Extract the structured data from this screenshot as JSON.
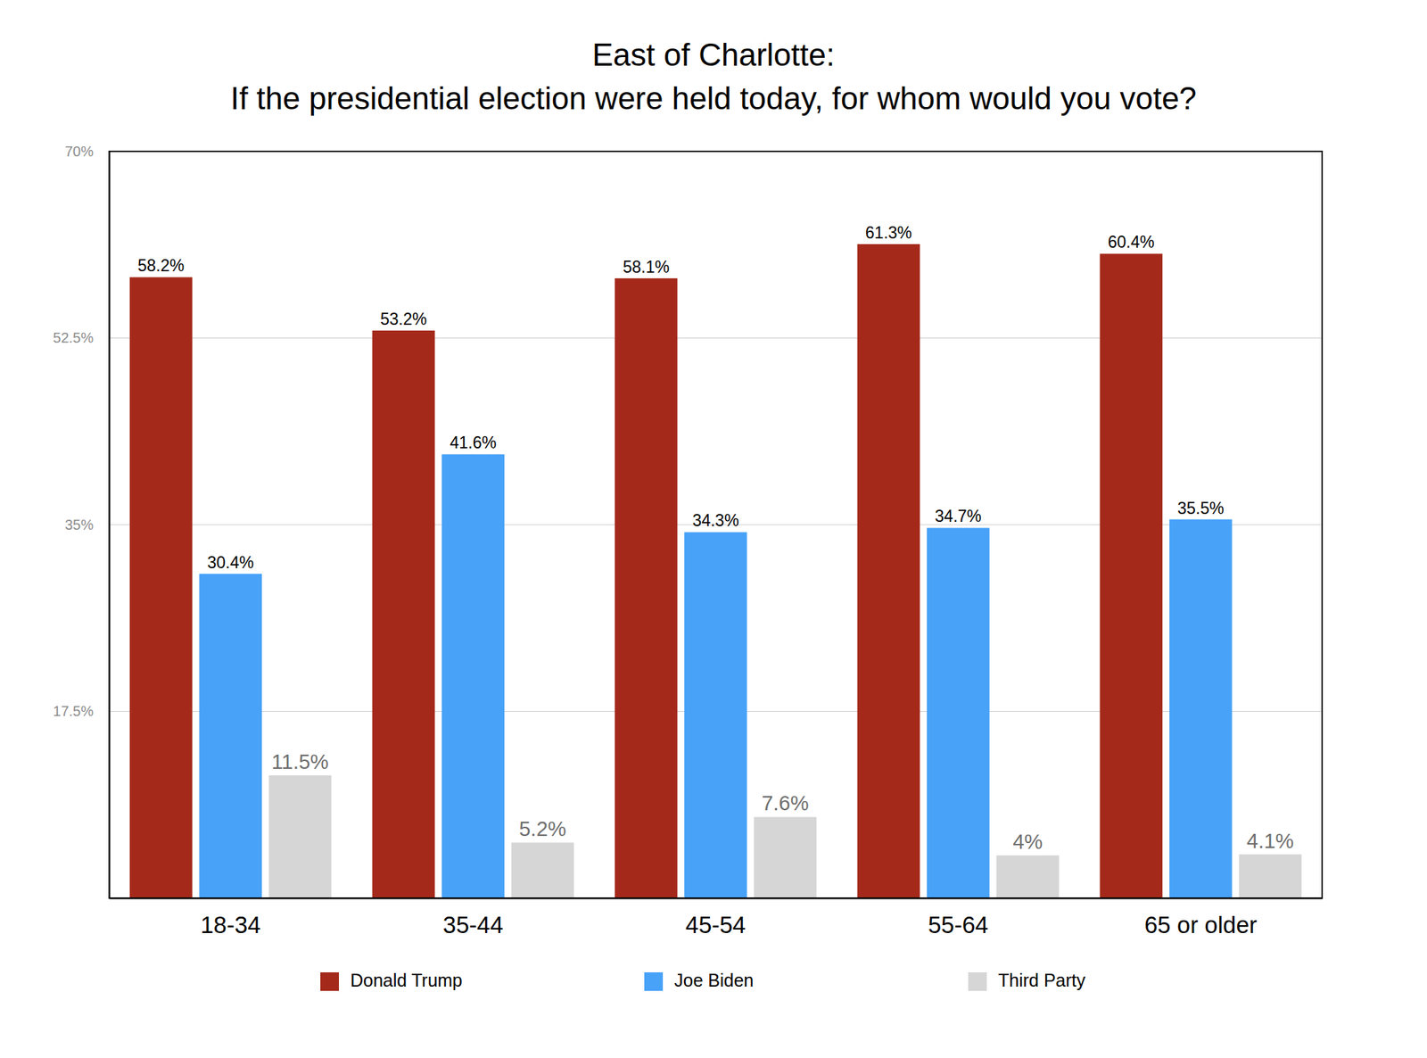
{
  "chart_data": {
    "type": "bar",
    "title": [
      "East of Charlotte:",
      "If the presidential election were held today, for whom would you vote?"
    ],
    "categories": [
      "18-34",
      "35-44",
      "45-54",
      "55-64",
      "65 or older"
    ],
    "series": [
      {
        "name": "Donald Trump",
        "color": "#a4291a",
        "values": [
          58.2,
          53.2,
          58.1,
          61.3,
          60.4
        ],
        "value_labels": [
          "58.2%",
          "53.2%",
          "58.1%",
          "61.3%",
          "60.4%"
        ]
      },
      {
        "name": "Joe Biden",
        "color": "#47a2f8",
        "values": [
          30.4,
          41.6,
          34.3,
          34.7,
          35.5
        ],
        "value_labels": [
          "30.4%",
          "41.6%",
          "34.3%",
          "34.7%",
          "35.5%"
        ]
      },
      {
        "name": "Third Party",
        "color": "#d6d6d6",
        "values": [
          11.5,
          5.2,
          7.6,
          4,
          4.1
        ],
        "value_labels": [
          "11.5%",
          "5.2%",
          "7.6%",
          "4%",
          "4.1%"
        ]
      }
    ],
    "ylim": [
      0,
      70
    ],
    "yticks": [
      {
        "value": 17.5,
        "label": "17.5%"
      },
      {
        "value": 35,
        "label": "35%"
      },
      {
        "value": 52.5,
        "label": "52.5%"
      },
      {
        "value": 70,
        "label": "70%"
      }
    ],
    "grid": true,
    "data_labels": true,
    "legend": "bottom"
  }
}
